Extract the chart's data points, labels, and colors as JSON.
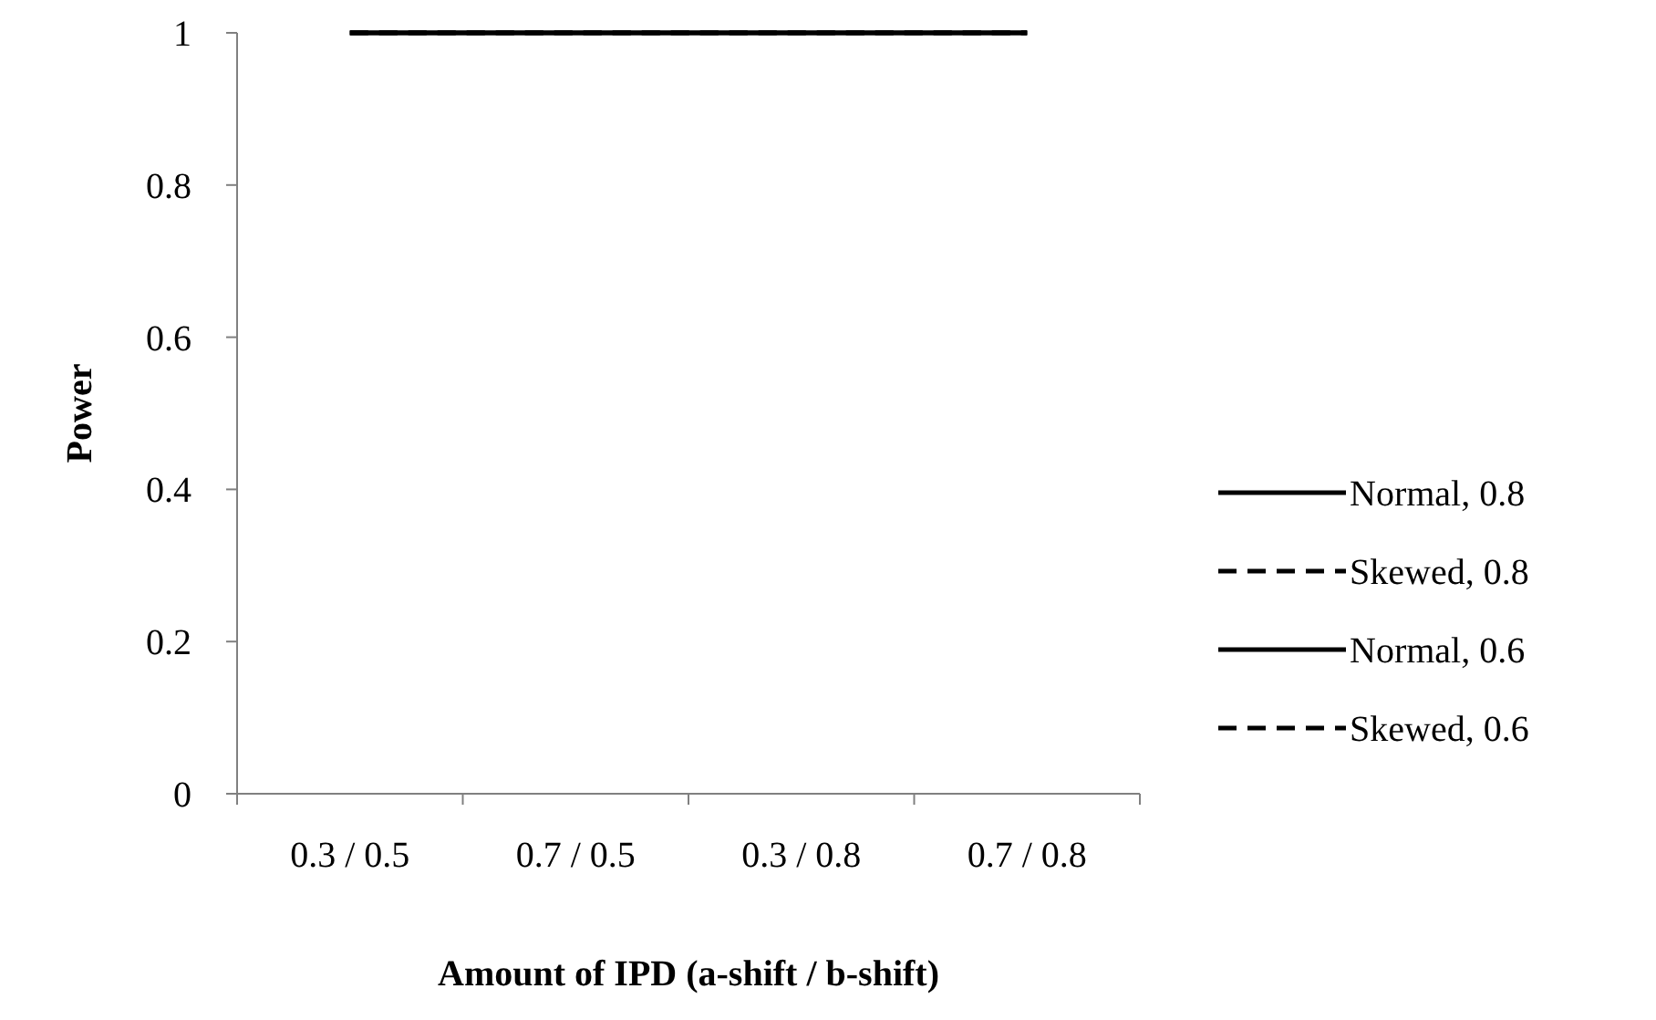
{
  "chart_data": {
    "type": "line",
    "xlabel": "Amount of IPD (a-shift / b-shift)",
    "ylabel": "Power",
    "categories": [
      "0.3 / 0.5",
      "0.7 / 0.5",
      "0.3 / 0.8",
      "0.7 / 0.8"
    ],
    "series": [
      {
        "name": "Normal, 0.8",
        "color": "#000000",
        "line_style": "solid",
        "values": [
          1,
          1,
          1,
          1
        ]
      },
      {
        "name": "Skewed, 0.8",
        "color": "#000000",
        "line_style": "dashed",
        "values": [
          1,
          1,
          1,
          1
        ]
      },
      {
        "name": "Normal, 0.6",
        "color": "#000000",
        "line_style": "solid",
        "values": [
          1,
          1,
          1,
          1
        ]
      },
      {
        "name": "Skewed, 0.6",
        "color": "#000000",
        "line_style": "dashed",
        "values": [
          1,
          1,
          1,
          1
        ]
      }
    ],
    "ylim": [
      0,
      1
    ],
    "yticks": [
      0,
      0.2,
      0.4,
      0.6,
      0.8,
      1
    ],
    "grid": false,
    "legend": "right",
    "marker": "none"
  }
}
